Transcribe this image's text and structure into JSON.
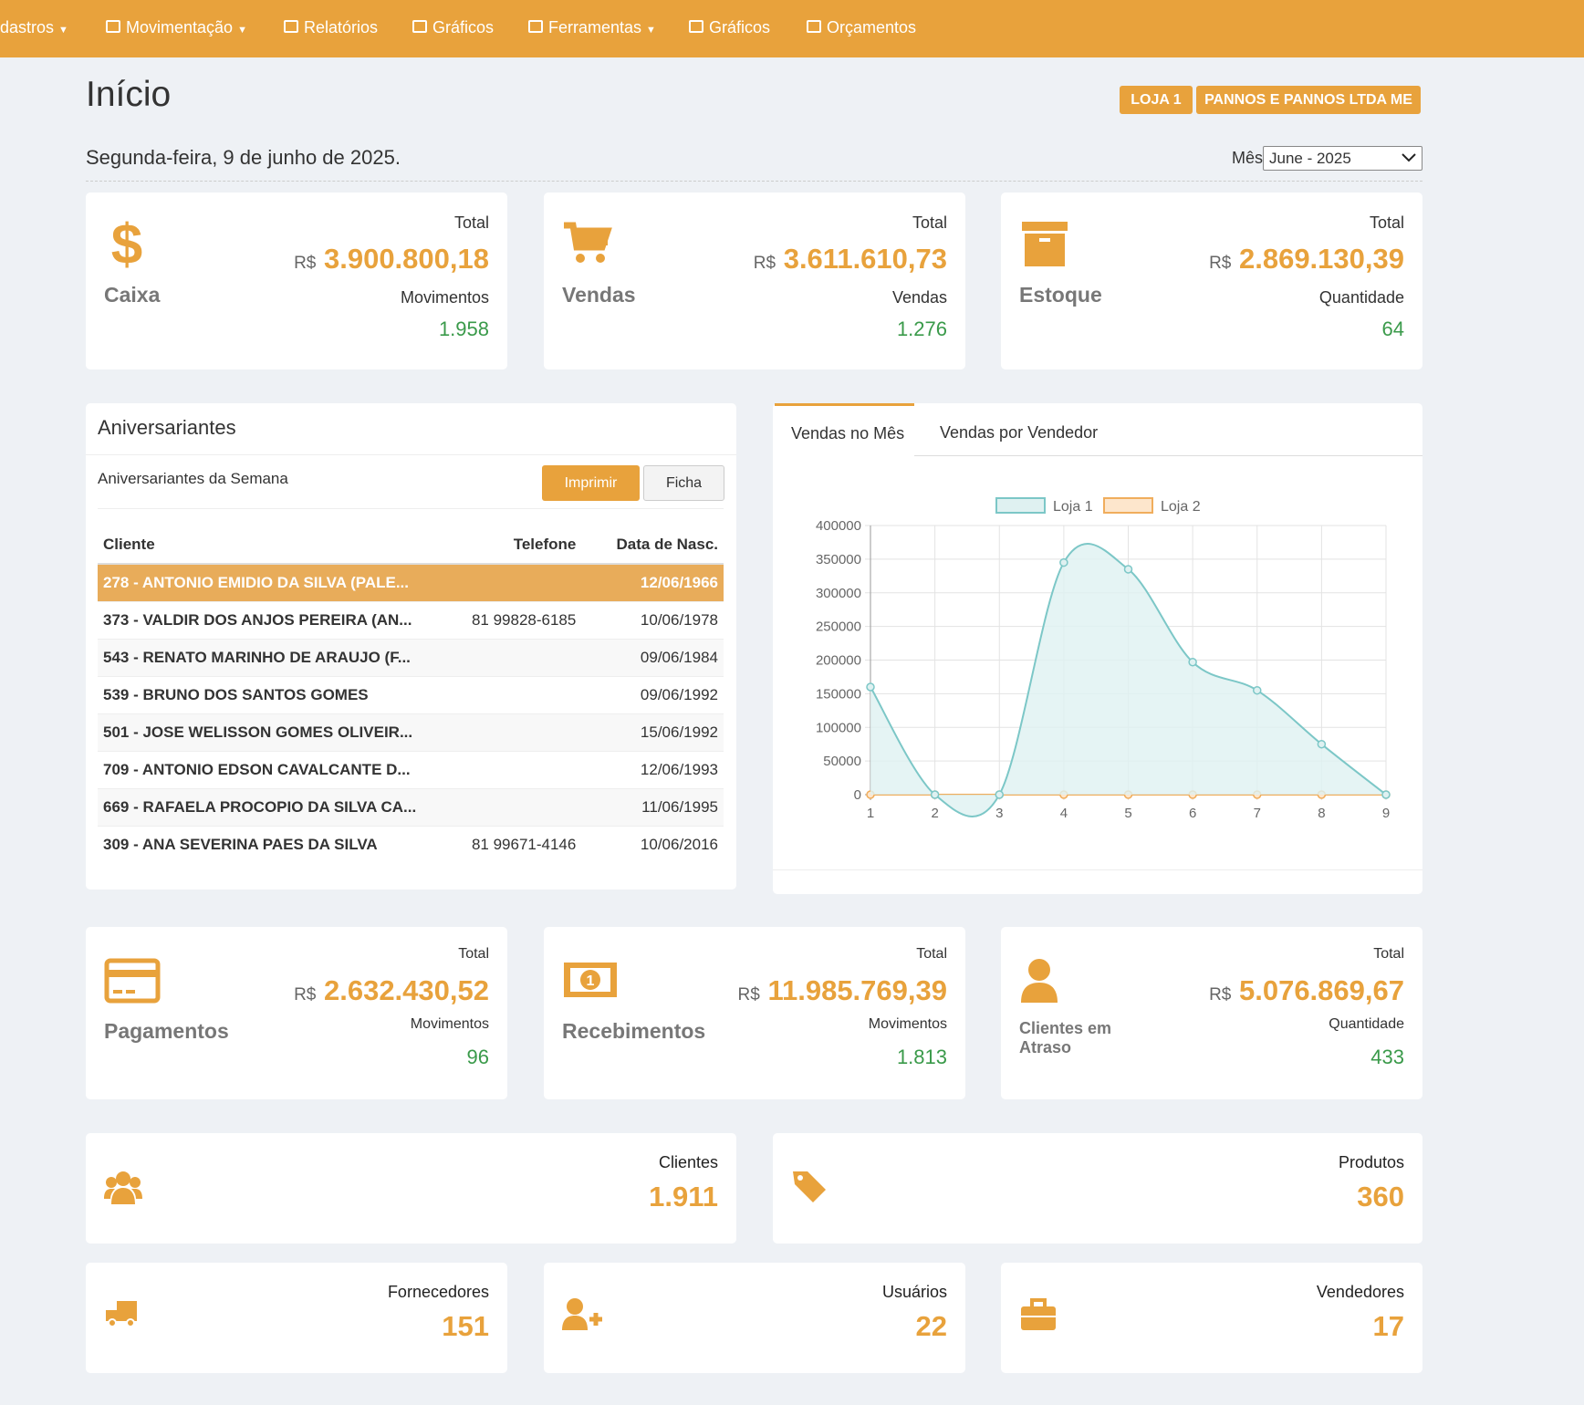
{
  "nav": {
    "items": [
      "dastros",
      "Movimentação",
      "Relatórios",
      "Gráficos",
      "Ferramentas",
      "Gráficos",
      "Orçamentos"
    ]
  },
  "header": {
    "title": "Início",
    "badges": [
      "LOJA 1",
      "PANNOS E PANNOS LTDA ME"
    ],
    "date": "Segunda-feira, 9 de junho de 2025.",
    "month_label": "Mês",
    "month_value": "June - 2025"
  },
  "summary_cards": [
    {
      "label": "Caixa",
      "total_label": "Total",
      "currency": "R$",
      "amount": "3.900.800,18",
      "sub_label": "Movimentos",
      "count": "1.958"
    },
    {
      "label": "Vendas",
      "total_label": "Total",
      "currency": "R$",
      "amount": "3.611.610,73",
      "sub_label": "Vendas",
      "count": "1.276"
    },
    {
      "label": "Estoque",
      "total_label": "Total",
      "currency": "R$",
      "amount": "2.869.130,39",
      "sub_label": "Quantidade",
      "count": "64"
    }
  ],
  "birthdays": {
    "title": "Aniversariantes",
    "subtitle": "Aniversariantes da Semana",
    "buttons": [
      "Imprimir",
      "Ficha"
    ],
    "columns": [
      "Cliente",
      "Telefone",
      "Data de Nasc."
    ],
    "rows": [
      [
        "278 - ANTONIO EMIDIO DA SILVA (PALE...",
        "",
        "12/06/1966"
      ],
      [
        "373 - VALDIR DOS ANJOS PEREIRA (AN...",
        "81 99828-6185",
        "10/06/1978"
      ],
      [
        "543 - RENATO MARINHO DE ARAUJO (F...",
        "",
        "09/06/1984"
      ],
      [
        "539 - BRUNO DOS SANTOS GOMES",
        "",
        "09/06/1992"
      ],
      [
        "501 - JOSE WELISSON GOMES OLIVEIR...",
        "",
        "15/06/1992"
      ],
      [
        "709 - ANTONIO EDSON CAVALCANTE D...",
        "",
        "12/06/1993"
      ],
      [
        "669 - RAFAELA PROCOPIO DA SILVA CA...",
        "",
        "11/06/1995"
      ],
      [
        "309 - ANA SEVERINA PAES DA SILVA",
        "81 99671-4146",
        "10/06/2016"
      ]
    ]
  },
  "tabs": [
    "Vendas no Mês",
    "Vendas por Vendedor"
  ],
  "chart_data": {
    "type": "line",
    "categories": [
      "1",
      "2",
      "3",
      "4",
      "5",
      "6",
      "7",
      "8",
      "9"
    ],
    "series": [
      {
        "name": "Loja 1",
        "color": "#7cc7c7",
        "fill": "#dff1f1",
        "values": [
          160000,
          0,
          0,
          345000,
          335000,
          197000,
          155000,
          75000,
          0
        ]
      },
      {
        "name": "Loja 2",
        "color": "#f0ad5c",
        "fill": "#fde6cc",
        "values": [
          0,
          0,
          0,
          0,
          0,
          0,
          0,
          0,
          0
        ]
      }
    ],
    "ylim": [
      0,
      400000
    ],
    "yticks": [
      0,
      50000,
      100000,
      150000,
      200000,
      250000,
      300000,
      350000,
      400000
    ],
    "grid": true,
    "legend": "top"
  },
  "finance_cards": [
    {
      "label": "Pagamentos",
      "total_label": "Total",
      "currency": "R$",
      "amount": "2.632.430,52",
      "sub_label": "Movimentos",
      "count": "96"
    },
    {
      "label": "Recebimentos",
      "total_label": "Total",
      "currency": "R$",
      "amount": "11.985.769,39",
      "sub_label": "Movimentos",
      "count": "1.813"
    },
    {
      "label": "Clientes em Atraso",
      "total_label": "Total",
      "currency": "R$",
      "amount": "5.076.869,67",
      "sub_label": "Quantidade",
      "count": "433"
    }
  ],
  "count_cards": [
    {
      "label": "Clientes",
      "value": "1.911"
    },
    {
      "label": "Produtos",
      "value": "360"
    },
    {
      "label": "Fornecedores",
      "value": "151"
    },
    {
      "label": "Usuários",
      "value": "22"
    },
    {
      "label": "Vendedores",
      "value": "17"
    }
  ]
}
